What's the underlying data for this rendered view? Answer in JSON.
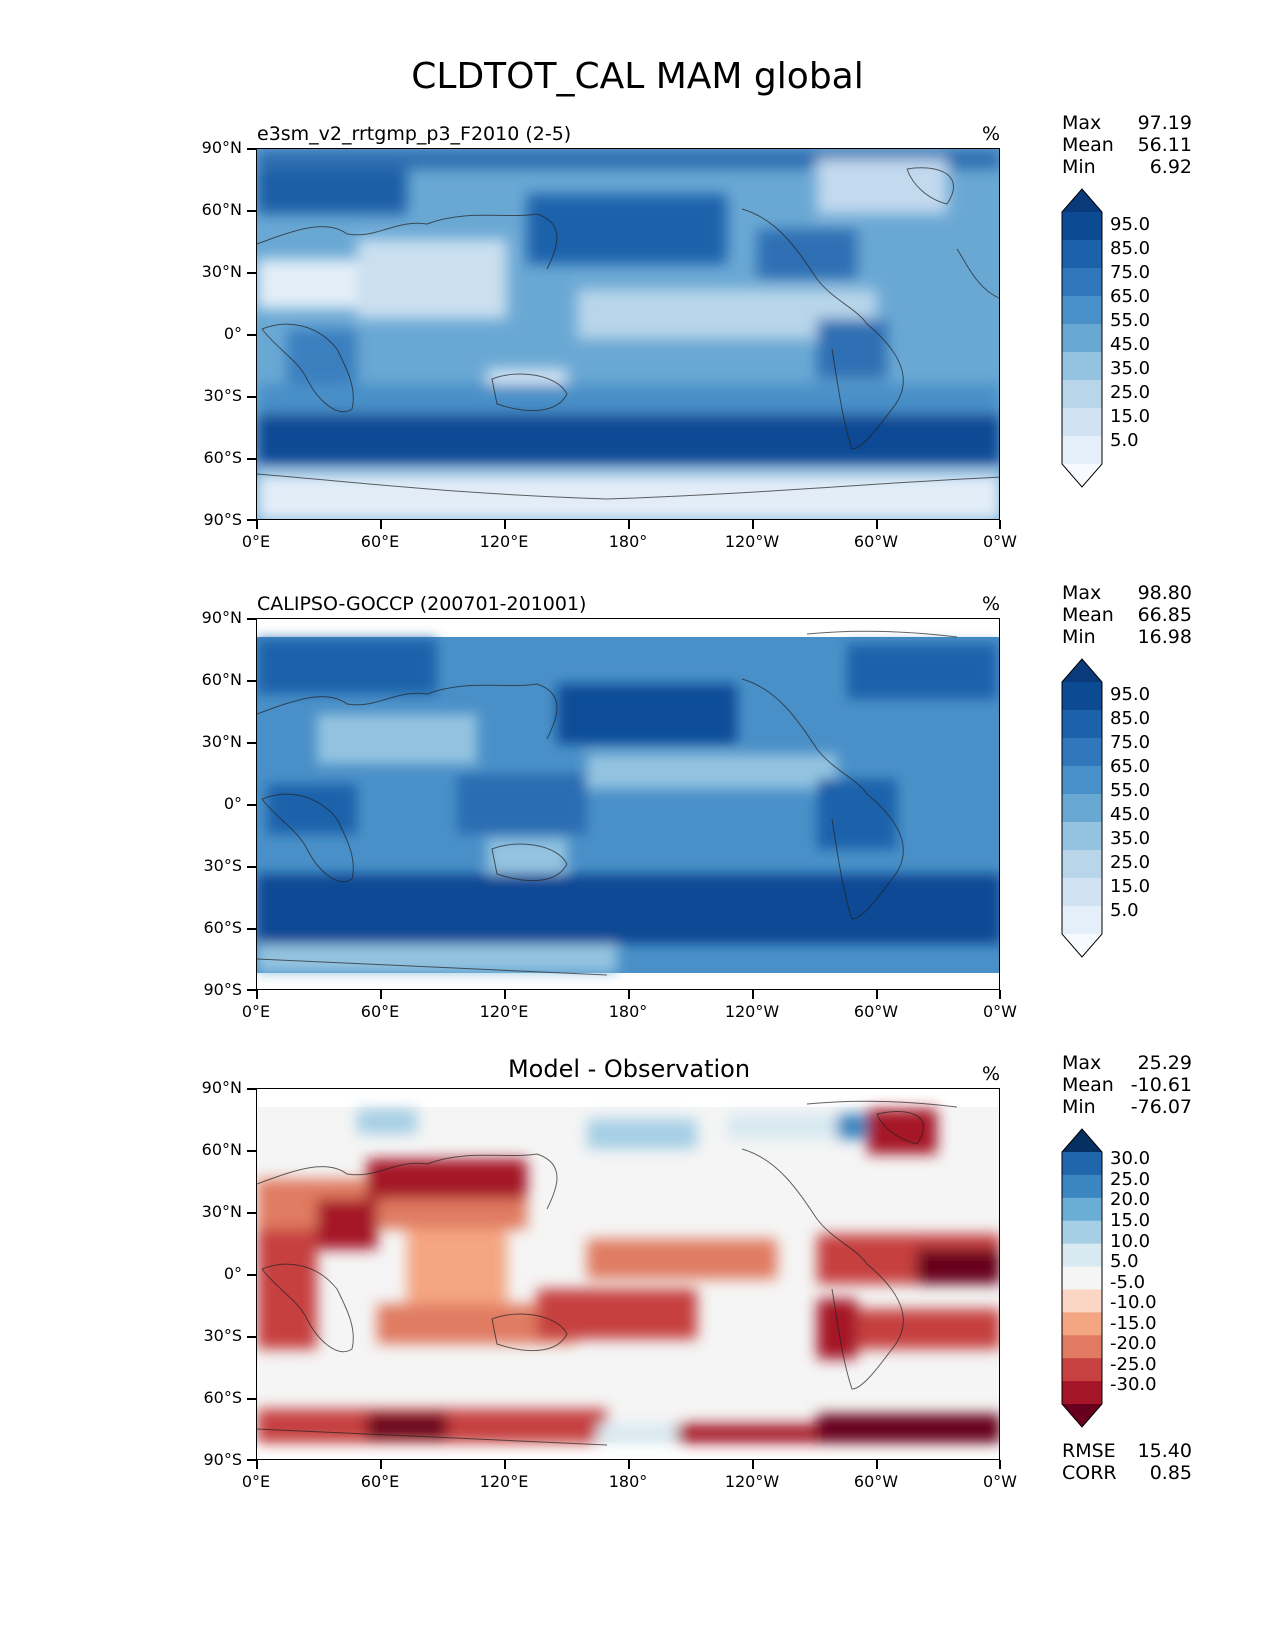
{
  "figure": {
    "title": "CLDTOT_CAL MAM global"
  },
  "axes": {
    "lat_labels": [
      "90°N",
      "60°N",
      "30°N",
      "0°",
      "30°S",
      "60°S",
      "90°S"
    ],
    "lon_labels": [
      "0°E",
      "60°E",
      "120°E",
      "180°",
      "120°W",
      "60°W",
      "0°W"
    ]
  },
  "panels": [
    {
      "title": "e3sm_v2_rrtgmp_p3_F2010 (2-5)",
      "unit": "%",
      "stats": [
        {
          "label": "Max",
          "value": "97.19"
        },
        {
          "label": "Mean",
          "value": "56.11"
        },
        {
          "label": "Min",
          "value": "6.92"
        }
      ],
      "colorbar": {
        "labels": [
          "95.0",
          "85.0",
          "75.0",
          "65.0",
          "55.0",
          "45.0",
          "35.0",
          "25.0",
          "15.0",
          "5.0"
        ],
        "colors": [
          "#0b3a7a",
          "#0d4a94",
          "#1b62ab",
          "#3078bb",
          "#4a90c8",
          "#6aa8d4",
          "#93c3e0",
          "#b8d5ea",
          "#d1e3f3",
          "#e5eff9",
          "#f7fbff"
        ]
      }
    },
    {
      "title": "CALIPSO-GOCCP (200701-201001)",
      "unit": "%",
      "stats": [
        {
          "label": "Max",
          "value": "98.80"
        },
        {
          "label": "Mean",
          "value": "66.85"
        },
        {
          "label": "Min",
          "value": "16.98"
        }
      ],
      "colorbar": {
        "labels": [
          "95.0",
          "85.0",
          "75.0",
          "65.0",
          "55.0",
          "45.0",
          "35.0",
          "25.0",
          "15.0",
          "5.0"
        ],
        "colors": [
          "#0b3a7a",
          "#0d4a94",
          "#1b62ab",
          "#3078bb",
          "#4a90c8",
          "#6aa8d4",
          "#93c3e0",
          "#b8d5ea",
          "#d1e3f3",
          "#e5eff9",
          "#f7fbff"
        ]
      }
    },
    {
      "title": "Model - Observation",
      "unit": "%",
      "stats": [
        {
          "label": "Max",
          "value": "25.29"
        },
        {
          "label": "Mean",
          "value": "-10.61"
        },
        {
          "label": "Min",
          "value": "-76.07"
        }
      ],
      "colorbar": {
        "labels": [
          "30.0",
          "25.0",
          "20.0",
          "15.0",
          "10.0",
          "5.0",
          "-5.0",
          "-10.0",
          "-15.0",
          "-20.0",
          "-25.0",
          "-30.0"
        ],
        "colors": [
          "#053061",
          "#2166ac",
          "#3a86c0",
          "#6aaed6",
          "#a6cfe5",
          "#d8e9f1",
          "#f5f5f5",
          "#fbd6c4",
          "#f4a582",
          "#e07b62",
          "#c6413f",
          "#a51528",
          "#67001f"
        ]
      },
      "fit_stats": [
        {
          "label": "RMSE",
          "value": "15.40"
        },
        {
          "label": "CORR",
          "value": "0.85"
        }
      ]
    }
  ]
}
